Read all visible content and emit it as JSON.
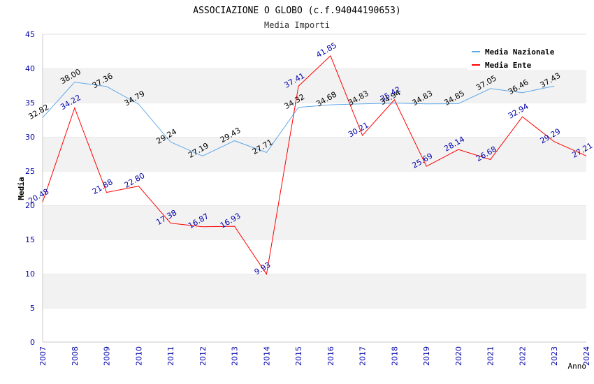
{
  "chart_data": {
    "type": "line",
    "title": "ASSOCIAZIONE O GLOBO (c.f.94044190653)",
    "subtitle": "Media Importi",
    "xlabel": "Anno",
    "ylabel": "Media",
    "ylim": [
      0,
      45
    ],
    "yticks": [
      "0",
      "5",
      "10",
      "15",
      "20",
      "25",
      "30",
      "35",
      "40",
      "45"
    ],
    "categories": [
      "2007",
      "2008",
      "2009",
      "2010",
      "2011",
      "2012",
      "2013",
      "2014",
      "2015",
      "2016",
      "2017",
      "2018",
      "2019",
      "2020",
      "2021",
      "2022",
      "2023",
      "2024"
    ],
    "grid": "horizontal alternating bands",
    "legend_position": "top-right",
    "series": [
      {
        "name": "Media Nazionale",
        "color": "#5fa8e8",
        "label_color": "#000000",
        "values": [
          32.82,
          38.0,
          37.36,
          34.79,
          29.24,
          27.19,
          29.43,
          27.71,
          34.32,
          34.68,
          34.83,
          34.94,
          34.83,
          34.85,
          37.05,
          36.46,
          37.43,
          null
        ],
        "labels": [
          "32.82",
          "38.00",
          "37.36",
          "34.79",
          "29.24",
          "27.19",
          "29.43",
          "27.71",
          "34.32",
          "34.68",
          "34.83",
          "34.94",
          "34.83",
          "34.85",
          "37.05",
          "36.46",
          "37.43",
          null
        ]
      },
      {
        "name": "Media Ente",
        "color": "#ff0000",
        "label_color": "#0000aa",
        "values": [
          20.48,
          34.22,
          21.88,
          22.8,
          17.38,
          16.87,
          16.93,
          9.93,
          37.41,
          41.85,
          30.21,
          35.42,
          25.69,
          28.14,
          26.68,
          32.94,
          29.29,
          27.21
        ],
        "labels": [
          "20.48",
          "34.22",
          "21.88",
          "22.80",
          "17.38",
          "16.87",
          "16.93",
          "9.93",
          "37.41",
          "41.85",
          "30.21",
          "35.42",
          "25.69",
          "28.14",
          "26.68",
          "32.94",
          "29.29",
          "27.21"
        ]
      }
    ]
  }
}
